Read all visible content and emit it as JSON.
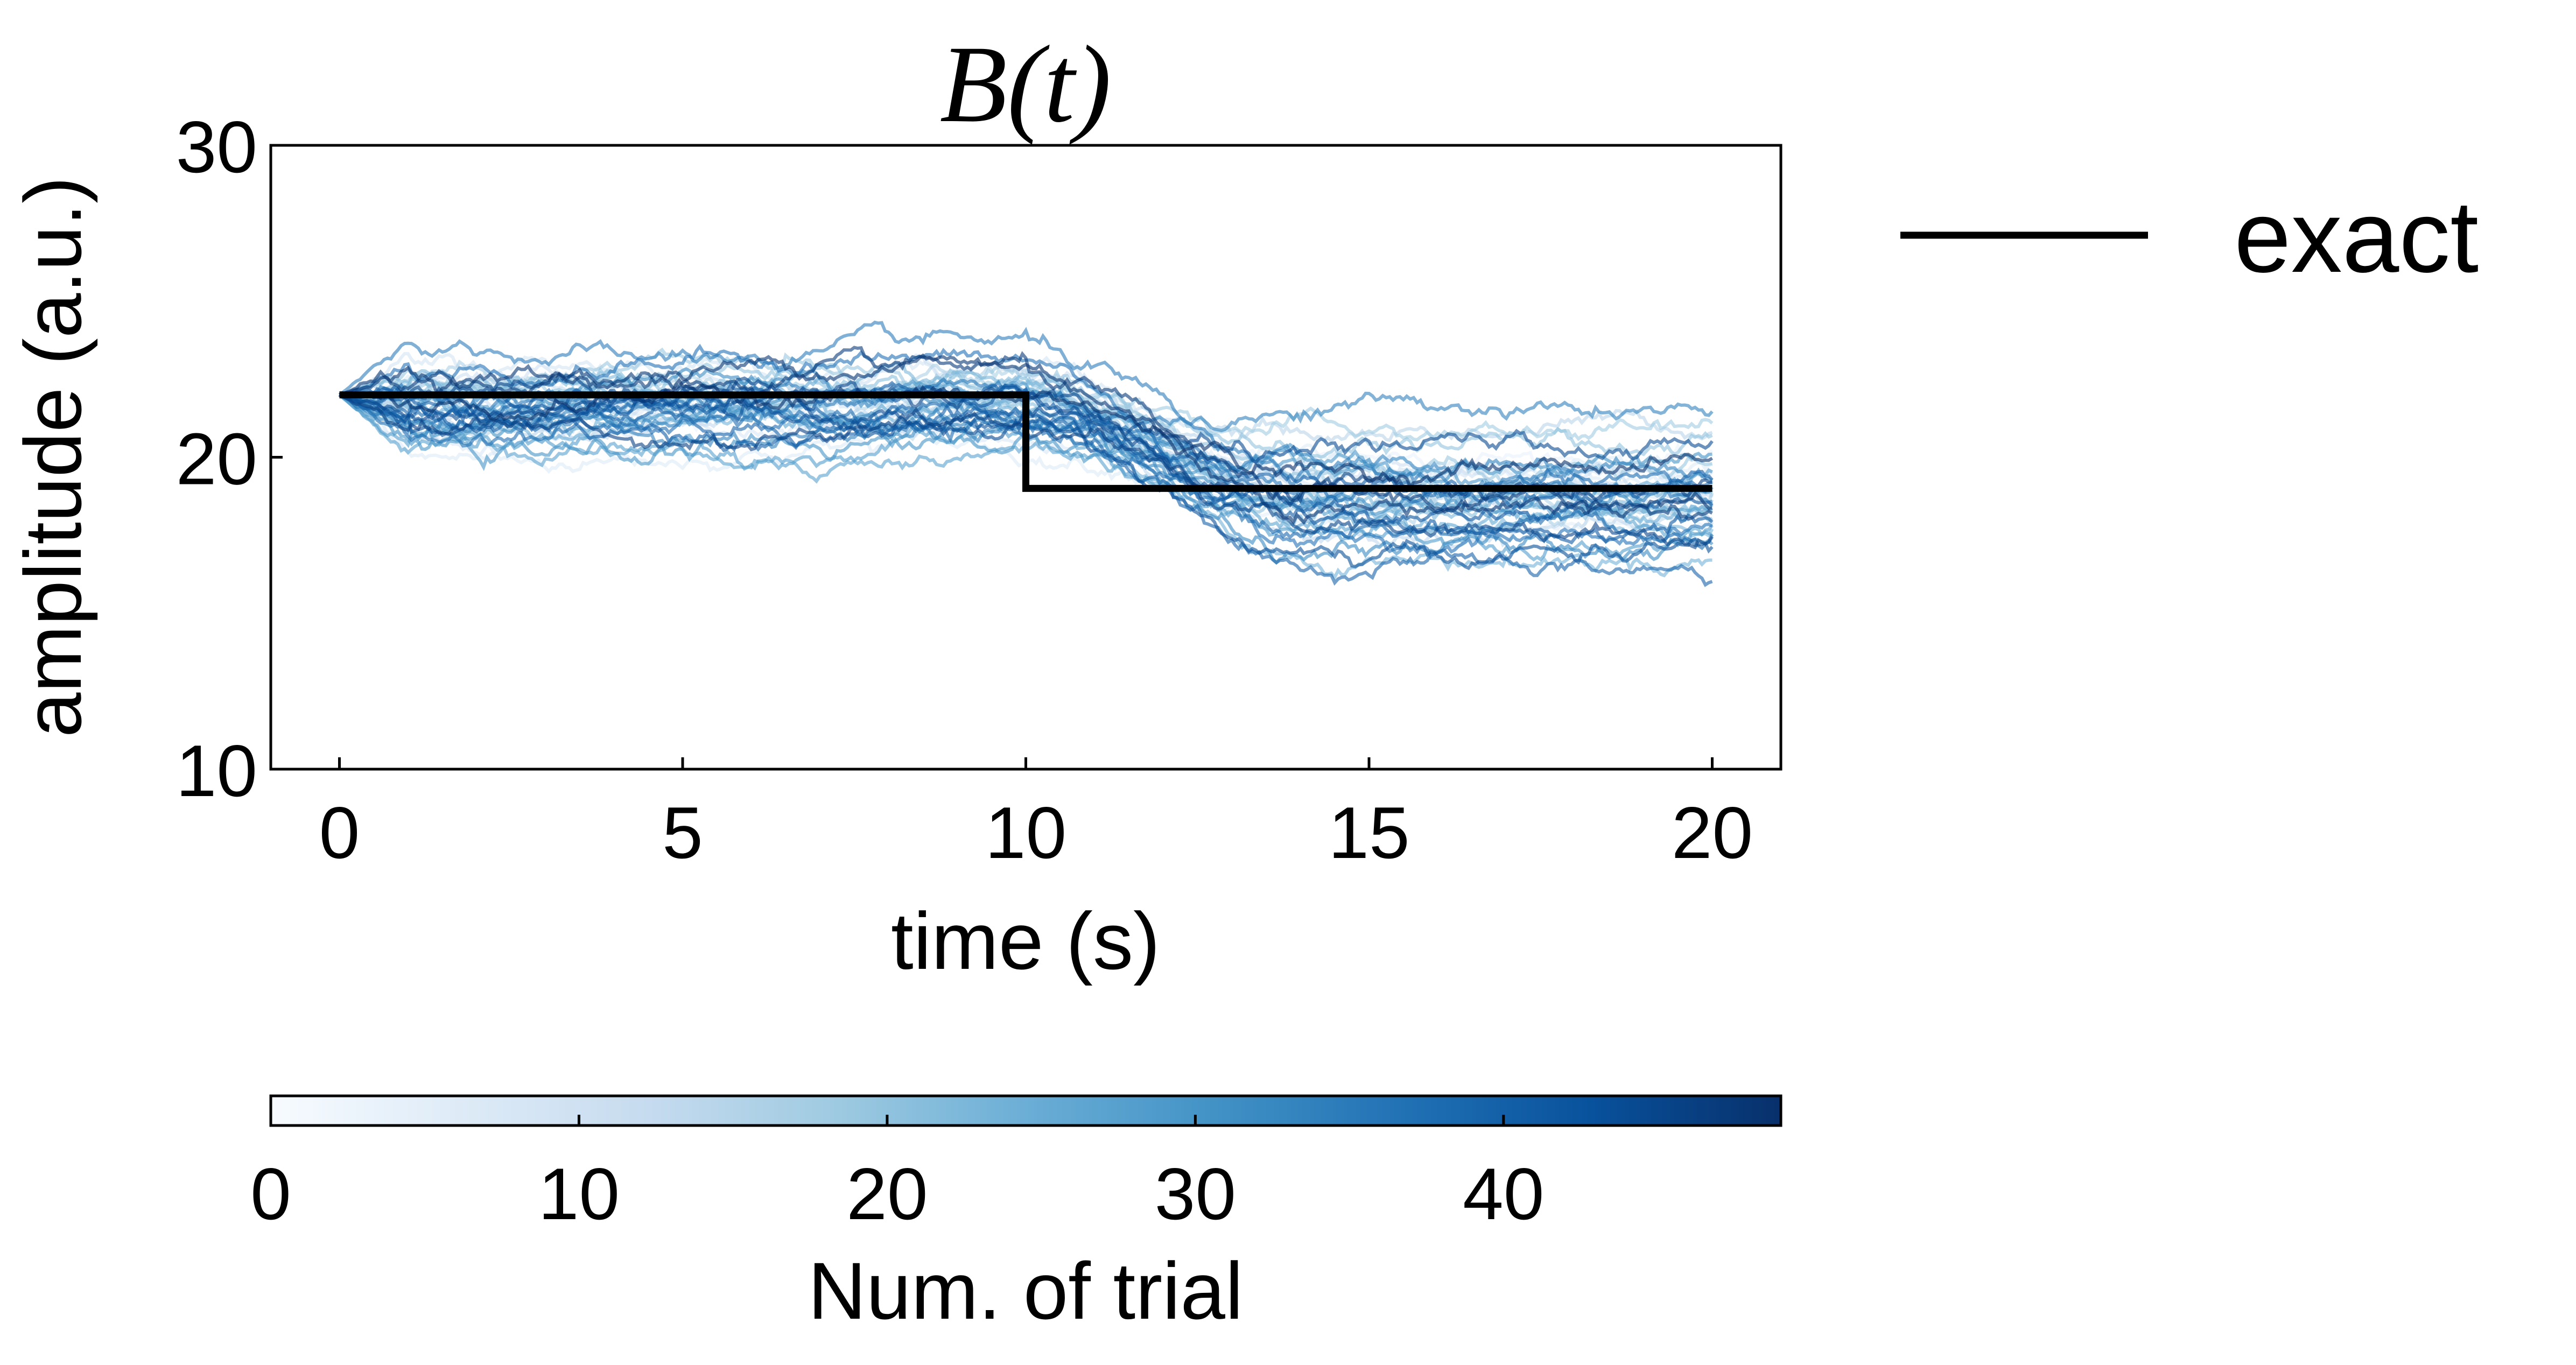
{
  "chart_data": {
    "type": "line",
    "title": "B(t)",
    "xlabel": "time (s)",
    "ylabel": "amplitude (a.u.)",
    "xlim": [
      -1,
      21
    ],
    "ylim": [
      10,
      30
    ],
    "x_ticks": [
      0,
      5,
      10,
      15,
      20
    ],
    "y_ticks": [
      10,
      20,
      30
    ],
    "grid": false,
    "legend": {
      "position": "outside-right",
      "entries": [
        "exact"
      ]
    },
    "exact": {
      "name": "exact",
      "color": "#000000",
      "x": [
        0,
        10,
        10,
        20
      ],
      "y": [
        22,
        22,
        19,
        19
      ]
    },
    "trials": {
      "count": 49,
      "x_range": [
        0,
        20
      ],
      "start_value": 22,
      "colormap": "Blues",
      "segment_means": [
        {
          "x_range": [
            0,
            10
          ],
          "mean": 21.6,
          "spread": 0.9
        },
        {
          "x_range": [
            10,
            20
          ],
          "mean": 18.8,
          "spread": 1.4
        }
      ]
    },
    "colorbar": {
      "label": "Num. of trial",
      "range": [
        0,
        49
      ],
      "ticks": [
        0,
        10,
        20,
        30,
        40
      ],
      "colormap": "Blues",
      "color_low": "#f7fbff",
      "color_high": "#08306b"
    }
  }
}
